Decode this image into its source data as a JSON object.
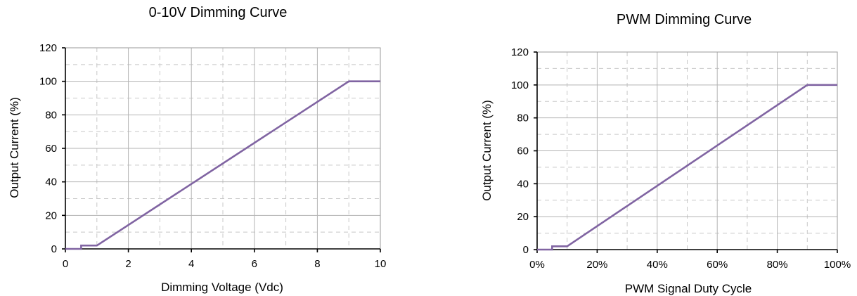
{
  "chart_data": [
    {
      "type": "line",
      "title": "0-10V Dimming Curve",
      "xlabel": "Dimming Voltage (Vdc)",
      "ylabel": "Output Current (%)",
      "xlim": [
        0,
        10
      ],
      "ylim": [
        0,
        120
      ],
      "xticks": [
        0,
        2,
        4,
        6,
        8,
        10
      ],
      "xtick_labels": [
        "0",
        "2",
        "4",
        "6",
        "8",
        "10"
      ],
      "yticks": [
        0,
        20,
        40,
        60,
        80,
        100,
        120
      ],
      "ytick_labels": [
        "0",
        "20",
        "40",
        "60",
        "80",
        "100",
        "120"
      ],
      "grid": true,
      "color": "#8064a2",
      "series": [
        {
          "x": [
            0,
            0.5,
            0.5,
            1,
            9,
            10
          ],
          "y": [
            0,
            0,
            2,
            2,
            100,
            100
          ]
        }
      ]
    },
    {
      "type": "line",
      "title": "PWM Dimming Curve",
      "xlabel": "PWM Signal Duty Cycle",
      "ylabel": "Output Current (%)",
      "xlim": [
        0,
        100
      ],
      "ylim": [
        0,
        120
      ],
      "xticks": [
        0,
        20,
        40,
        60,
        80,
        100
      ],
      "xtick_labels": [
        "0%",
        "20%",
        "40%",
        "60%",
        "80%",
        "100%"
      ],
      "yticks": [
        0,
        20,
        40,
        60,
        80,
        100,
        120
      ],
      "ytick_labels": [
        "0",
        "20",
        "40",
        "60",
        "80",
        "100",
        "120"
      ],
      "grid": true,
      "color": "#8064a2",
      "series": [
        {
          "x": [
            0,
            5,
            5,
            10,
            90,
            100
          ],
          "y": [
            0,
            0,
            2,
            2,
            100,
            100
          ]
        }
      ]
    }
  ]
}
